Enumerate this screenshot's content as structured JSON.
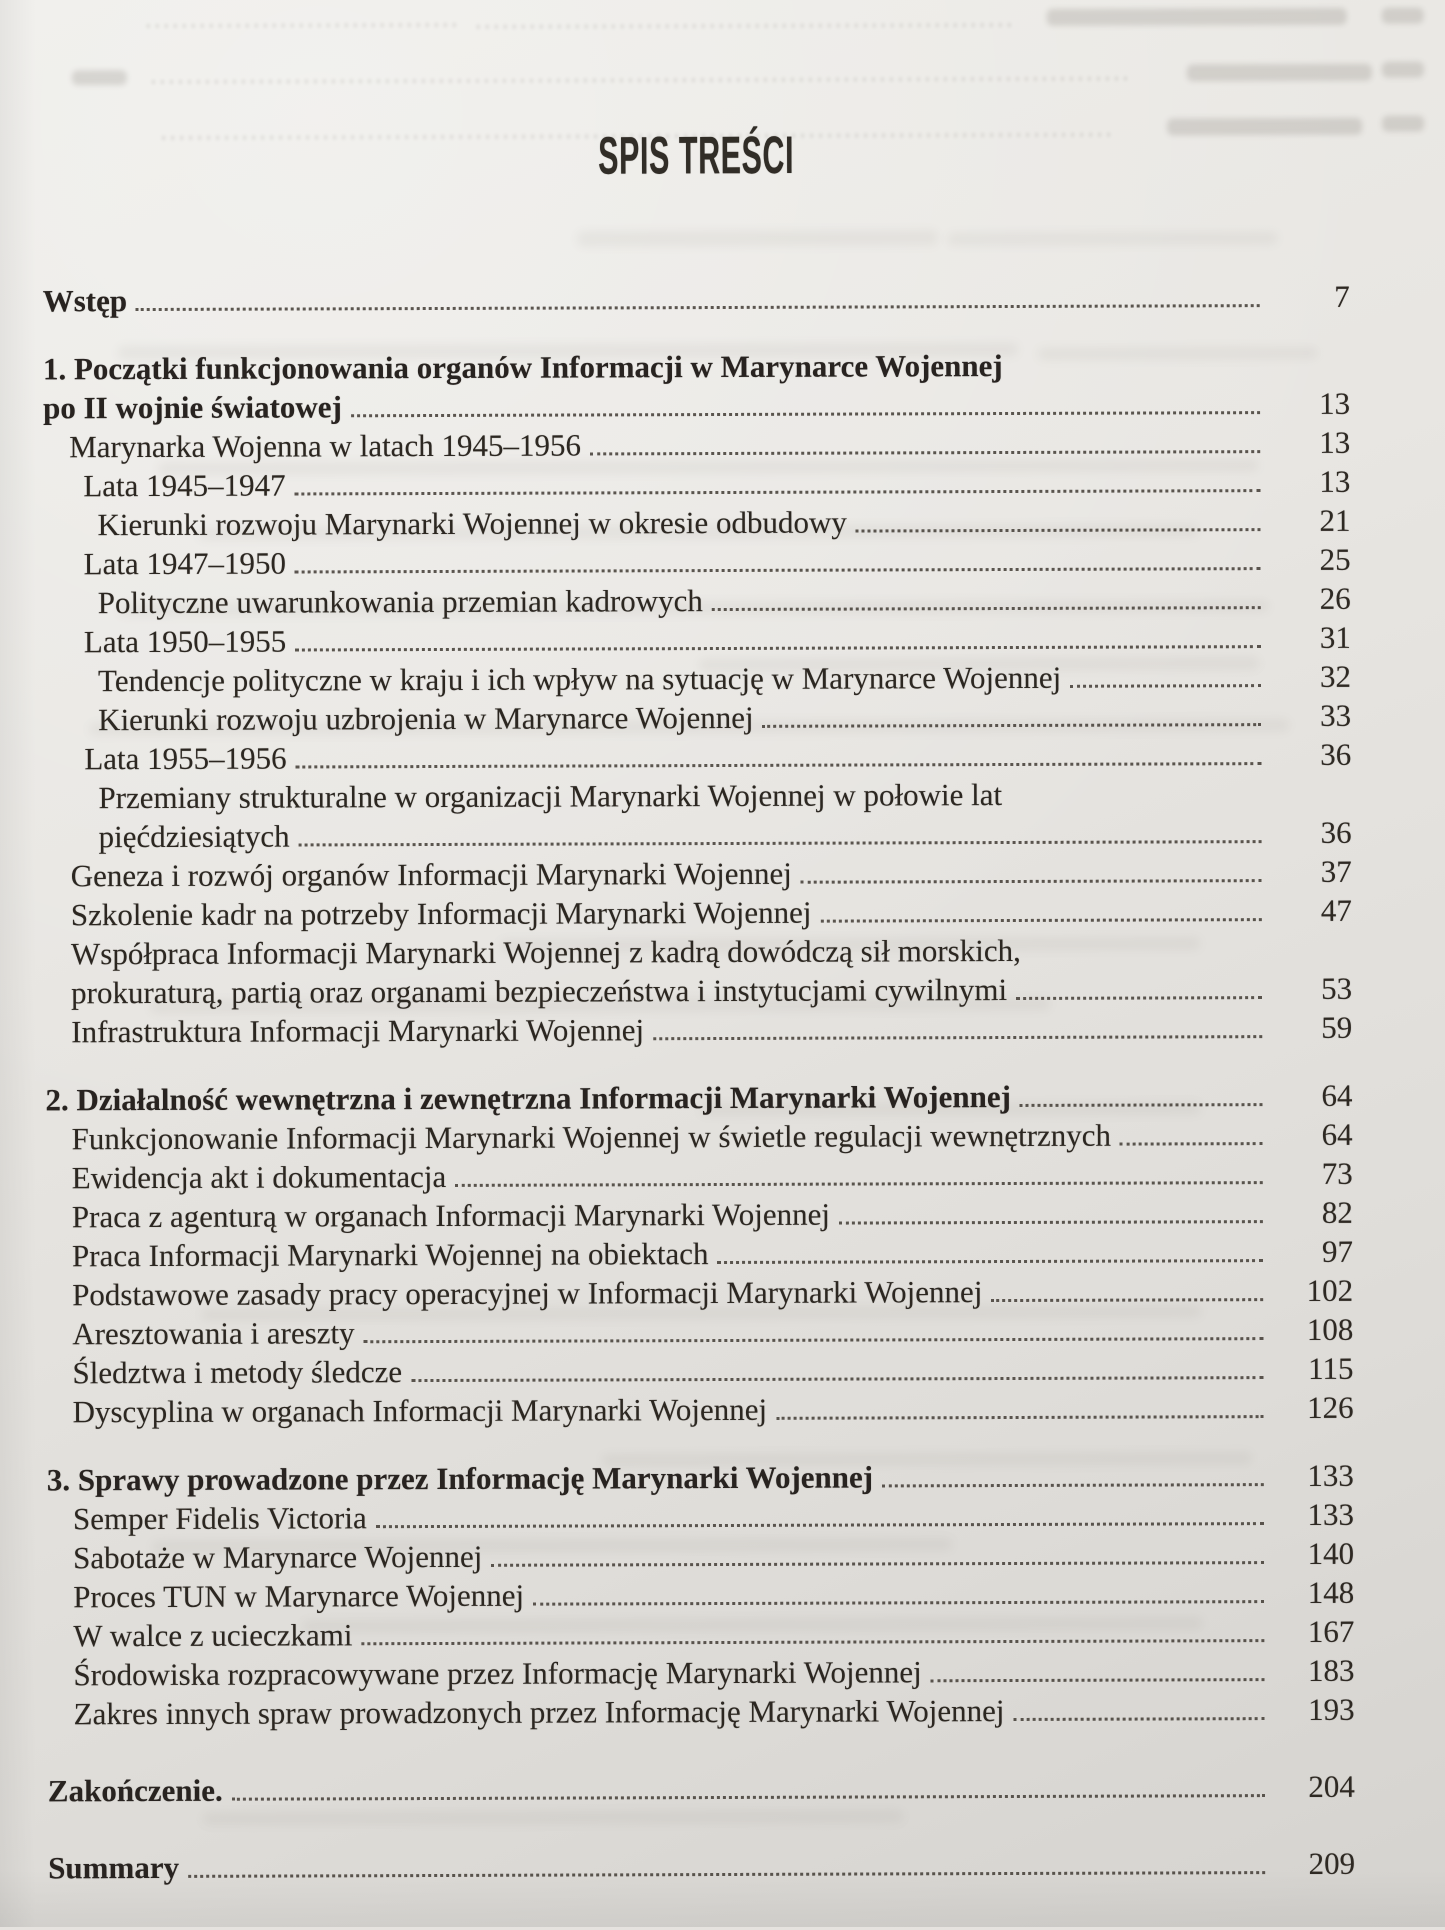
{
  "title": "SPIS TREŚCI",
  "colors": {
    "paper": "#e6e3df",
    "ink": "#2c2721"
  },
  "toc": {
    "rows": [
      {
        "level": 0,
        "bold": true,
        "text": "Wstęp",
        "page": "7",
        "dots": true
      },
      {
        "level": 0,
        "bold": true,
        "gap": "section",
        "text": "1. Początki funkcjonowania organów Informacji w Marynarce Wojennej",
        "page": null,
        "dots": false
      },
      {
        "level": 0,
        "bold": true,
        "text": "po II wojnie światowej",
        "page": "13",
        "dots": true
      },
      {
        "level": 1,
        "bold": false,
        "text": "Marynarka Wojenna w latach 1945–1956",
        "page": "13",
        "dots": true
      },
      {
        "level": 2,
        "bold": false,
        "text": "Lata 1945–1947",
        "page": "13",
        "dots": true
      },
      {
        "level": 3,
        "bold": false,
        "text": "Kierunki rozwoju Marynarki Wojennej w okresie odbudowy",
        "page": "21",
        "dots": true
      },
      {
        "level": 2,
        "bold": false,
        "text": "Lata 1947–1950",
        "page": "25",
        "dots": true
      },
      {
        "level": 3,
        "bold": false,
        "text": "Polityczne uwarunkowania przemian kadrowych",
        "page": "26",
        "dots": true
      },
      {
        "level": 2,
        "bold": false,
        "text": "Lata 1950–1955",
        "page": "31",
        "dots": true
      },
      {
        "level": 3,
        "bold": false,
        "text": "Tendencje polityczne w kraju i ich wpływ na sytuację w Marynarce Wojennej",
        "page": "32",
        "dots": true
      },
      {
        "level": 3,
        "bold": false,
        "text": "Kierunki rozwoju uzbrojenia w Marynarce Wojennej",
        "page": "33",
        "dots": true
      },
      {
        "level": 2,
        "bold": false,
        "text": "Lata 1955–1956",
        "page": "36",
        "dots": true
      },
      {
        "level": 3,
        "bold": false,
        "text": "Przemiany strukturalne w organizacji Marynarki Wojennej w połowie lat",
        "page": null,
        "dots": false
      },
      {
        "level": 3,
        "bold": false,
        "text": "pięćdziesiątych",
        "page": "36",
        "dots": true
      },
      {
        "level": 1,
        "bold": false,
        "text": "Geneza i rozwój organów Informacji Marynarki Wojennej",
        "page": "37",
        "dots": true
      },
      {
        "level": 1,
        "bold": false,
        "text": "Szkolenie kadr na potrzeby Informacji Marynarki Wojennej",
        "page": "47",
        "dots": true
      },
      {
        "level": 1,
        "bold": false,
        "text": "Współpraca Informacji Marynarki Wojennej z kadrą dowódczą sił morskich,",
        "page": null,
        "dots": false
      },
      {
        "level": 1,
        "bold": false,
        "text": "prokuraturą, partią oraz organami bezpieczeństwa i instytucjami cywilnymi",
        "page": "53",
        "dots": true
      },
      {
        "level": 1,
        "bold": false,
        "text": "Infrastruktura Informacji Marynarki Wojennej",
        "page": "59",
        "dots": true
      },
      {
        "level": 0,
        "bold": true,
        "gap": "section",
        "text": "2. Działalność wewnętrzna i zewnętrzna Informacji Marynarki Wojennej",
        "page": "64",
        "dots": true
      },
      {
        "level": 1,
        "bold": false,
        "text": "Funkcjonowanie Informacji Marynarki Wojennej w świetle regulacji wewnętrznych",
        "page": "64",
        "dots": true
      },
      {
        "level": 1,
        "bold": false,
        "text": "Ewidencja akt i dokumentacja",
        "page": "73",
        "dots": true
      },
      {
        "level": 1,
        "bold": false,
        "text": "Praca z agenturą w organach Informacji Marynarki Wojennej",
        "page": "82",
        "dots": true
      },
      {
        "level": 1,
        "bold": false,
        "text": "Praca Informacji Marynarki Wojennej na obiektach",
        "page": "97",
        "dots": true
      },
      {
        "level": 1,
        "bold": false,
        "text": "Podstawowe zasady pracy operacyjnej w Informacji Marynarki Wojennej",
        "page": "102",
        "dots": true
      },
      {
        "level": 1,
        "bold": false,
        "text": "Aresztowania i areszty",
        "page": "108",
        "dots": true
      },
      {
        "level": 1,
        "bold": false,
        "text": "Śledztwa i metody śledcze",
        "page": "115",
        "dots": true
      },
      {
        "level": 1,
        "bold": false,
        "text": "Dyscyplina w organach Informacji Marynarki Wojennej",
        "page": "126",
        "dots": true
      },
      {
        "level": 0,
        "bold": true,
        "gap": "section",
        "text": "3. Sprawy prowadzone przez Informację Marynarki Wojennej",
        "page": "133",
        "dots": true
      },
      {
        "level": 1,
        "bold": false,
        "text": "Semper Fidelis Victoria",
        "page": "133",
        "dots": true
      },
      {
        "level": 1,
        "bold": false,
        "text": "Sabotaże w Marynarce Wojennej",
        "page": "140",
        "dots": true
      },
      {
        "level": 1,
        "bold": false,
        "text": "Proces TUN w Marynarce Wojennej",
        "page": "148",
        "dots": true
      },
      {
        "level": 1,
        "bold": false,
        "text": "W walce z ucieczkami",
        "page": "167",
        "dots": true
      },
      {
        "level": 1,
        "bold": false,
        "text": "Środowiska rozpracowywane przez Informację Marynarki Wojennej",
        "page": "183",
        "dots": true
      },
      {
        "level": 1,
        "bold": false,
        "text": "Zakres innych spraw prowadzonych przez Informację Marynarki Wojennej",
        "page": "193",
        "dots": true
      },
      {
        "level": 0,
        "bold": true,
        "gap": "end",
        "text": "Zakończenie.",
        "page": "204",
        "dots": true
      },
      {
        "level": 0,
        "bold": true,
        "gap": "end",
        "text": "Summary",
        "page": "209",
        "dots": true
      }
    ]
  }
}
